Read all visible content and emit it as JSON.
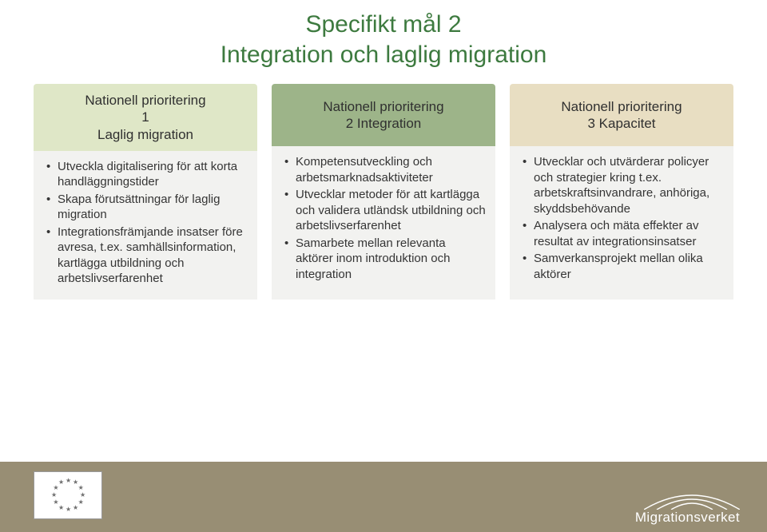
{
  "title": {
    "line1": "Specifikt mål 2",
    "line2": "Integration och laglig migration",
    "color": "#3d7a3f",
    "fontsize": 30
  },
  "columns": [
    {
      "header": {
        "line1": "Nationell prioritering",
        "line2": "1",
        "line3": "Laglig migration",
        "bg": "#dfe7c7"
      },
      "items": [
        "Utveckla digitalisering för att korta handläggningstider",
        "Skapa förutsättningar för laglig migration",
        "Integrationsfrämjande insatser före avresa, t.ex. samhällsinformation, kartlägga utbildning och arbetslivserfarenhet"
      ]
    },
    {
      "header": {
        "line1": "Nationell prioritering",
        "line2": "2 Integration",
        "line3": "",
        "bg": "#9db489"
      },
      "items": [
        "Kompetensutveckling och arbetsmarknadsaktiviteter",
        "Utvecklar metoder för att kartlägga och validera utländsk utbildning och arbetslivserfarenhet",
        "Samarbete mellan relevanta aktörer inom introduktion och integration"
      ]
    },
    {
      "header": {
        "line1": "Nationell prioritering",
        "line2": "3 Kapacitet",
        "line3": "",
        "bg": "#e8dec2"
      },
      "items": [
        "Utvecklar och utvärderar policyer och strategier kring t.ex. arbetskraftsinvandrare, anhöriga, skyddsbehövande",
        "Analysera och mäta effekter av resultat av integrationsinsatser",
        "Samverkansprojekt mellan olika aktörer"
      ]
    }
  ],
  "footer": {
    "bg": "#988e74",
    "logo_text": "Migrationsverket",
    "logo_text_color": "#ffffff",
    "arc_stroke": "#ffffff"
  },
  "eu_flag": {
    "star_color": "#6f6f6f",
    "border": "#9a9a9a",
    "bg": "#ffffff"
  }
}
